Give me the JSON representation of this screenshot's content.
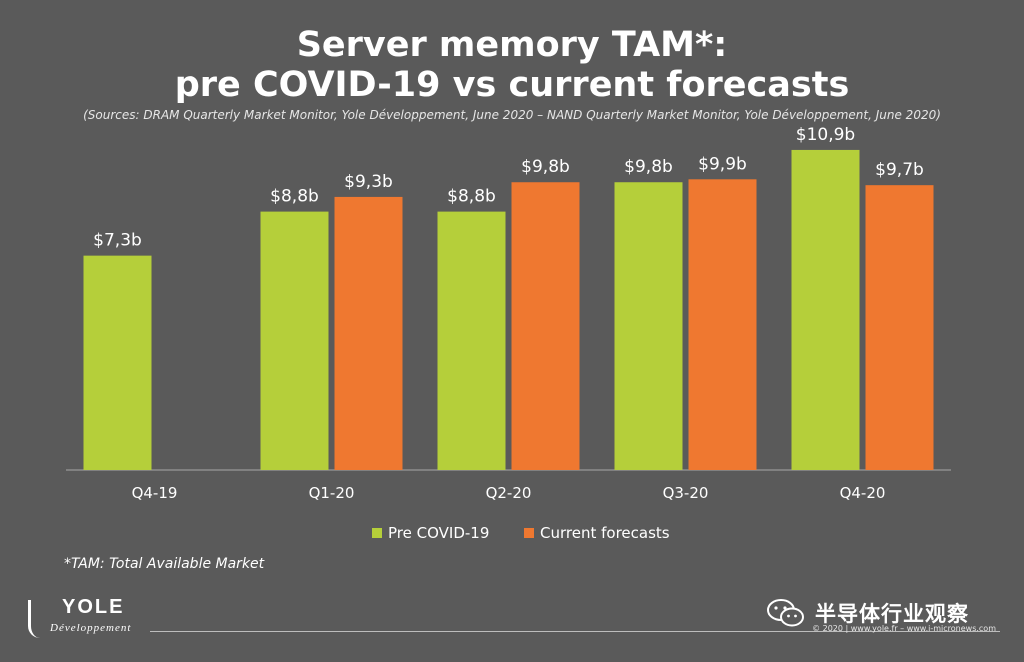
{
  "header": {
    "title_line1": "Server memory TAM*:",
    "title_line2": "pre COVID-19 vs current forecasts",
    "sources": "(Sources: DRAM Quarterly Market Monitor, Yole Développement, June 2020 – NAND Quarterly Market Monitor, Yole Développement, June 2020)"
  },
  "chart_data": {
    "type": "bar",
    "categories": [
      "Q4-19",
      "Q1-20",
      "Q2-20",
      "Q3-20",
      "Q4-20"
    ],
    "series": [
      {
        "name": "Pre COVID-19",
        "color": "#b5cf3a",
        "values": [
          7.3,
          8.8,
          8.8,
          9.8,
          10.9
        ],
        "labels": [
          "$7,3b",
          "$8,8b",
          "$8,8b",
          "$9,8b",
          "$10,9b"
        ]
      },
      {
        "name": "Current forecasts",
        "color": "#ef7830",
        "values": [
          null,
          9.3,
          9.8,
          9.9,
          9.7
        ],
        "labels": [
          null,
          "$9,3b",
          "$9,8b",
          "$9,9b",
          "$9,7b"
        ]
      }
    ],
    "ylim": [
      0,
      11
    ],
    "legend_position": "bottom",
    "grid": false
  },
  "footnote": "*TAM: Total Available Market",
  "logo": {
    "name": "YOLE",
    "sub": "Développement"
  },
  "watermark": "半导体行业观察",
  "copyright": "© 2020 | www.yole.fr – www.i-micronews.com"
}
